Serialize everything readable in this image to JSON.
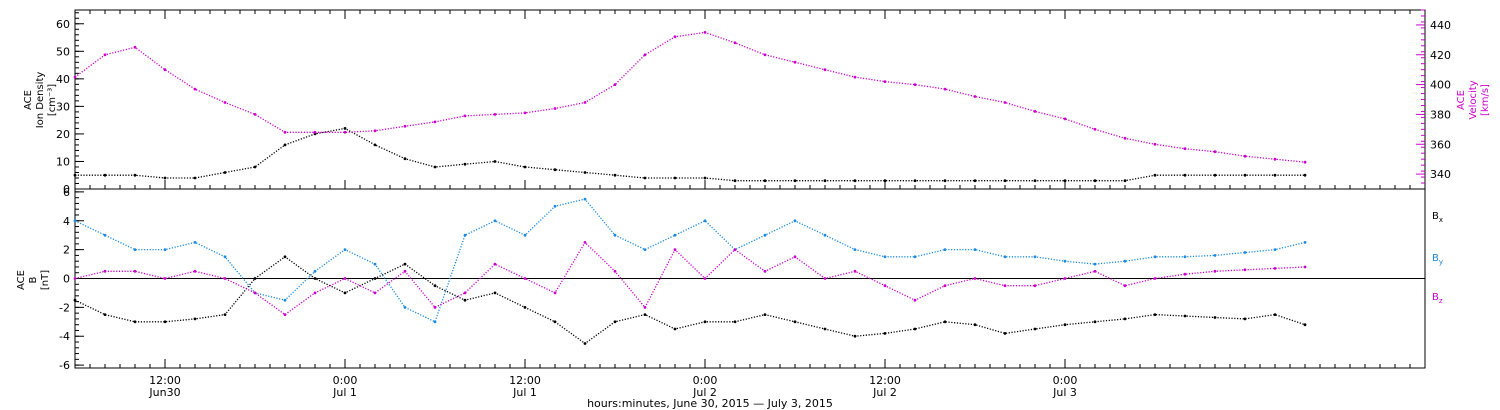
{
  "chart_data": [
    {
      "type": "scatter",
      "panel": "density-velocity",
      "ylabel_left": [
        "ACE",
        "Ion Density",
        "[cm⁻³]"
      ],
      "ylabel_right": [
        "ACE",
        "Velocity",
        "[km/s]"
      ],
      "ylim_left": [
        0,
        65
      ],
      "ylim_right": [
        330,
        450
      ],
      "yticks_left": [
        0,
        10,
        20,
        30,
        40,
        50,
        60
      ],
      "yticks_right": [
        340,
        360,
        380,
        400,
        420,
        440
      ],
      "series": [
        {
          "axis": "left",
          "color": "#000000",
          "x": [
            0,
            2,
            4,
            6,
            8,
            10,
            12,
            14,
            16,
            18,
            20,
            22,
            24,
            26,
            28,
            30,
            32,
            34,
            36,
            38,
            40,
            42,
            44,
            46,
            48,
            50,
            52,
            54,
            56,
            58,
            60,
            62,
            64,
            66,
            68,
            70,
            72,
            74,
            76,
            78,
            80,
            82
          ],
          "values": [
            5,
            5,
            5,
            4,
            4,
            6,
            8,
            16,
            20,
            22,
            16,
            11,
            8,
            9,
            10,
            8,
            7,
            6,
            5,
            4,
            4,
            4,
            3,
            3,
            3,
            3,
            3,
            3,
            3,
            3,
            3,
            3,
            3,
            3,
            3,
            3,
            5,
            5,
            5,
            5,
            5,
            5
          ]
        },
        {
          "axis": "right",
          "color": "#cc00cc",
          "x": [
            0,
            2,
            4,
            6,
            8,
            10,
            12,
            14,
            16,
            18,
            20,
            22,
            24,
            26,
            28,
            30,
            32,
            34,
            36,
            38,
            40,
            42,
            44,
            46,
            48,
            50,
            52,
            54,
            56,
            58,
            60,
            62,
            64,
            66,
            68,
            70,
            72,
            74,
            76,
            78,
            80,
            82
          ],
          "values": [
            405,
            420,
            425,
            410,
            397,
            388,
            380,
            368,
            368,
            368,
            369,
            372,
            375,
            379,
            380,
            381,
            384,
            388,
            400,
            420,
            432,
            435,
            428,
            420,
            415,
            410,
            405,
            402,
            400,
            397,
            392,
            388,
            382,
            377,
            370,
            364,
            360,
            357,
            355,
            352,
            350,
            348
          ]
        }
      ]
    },
    {
      "type": "scatter",
      "panel": "magnetic-field",
      "ylabel": [
        "ACE",
        "B",
        "[nT]"
      ],
      "ylim": [
        -6.2,
        6.2
      ],
      "yticks": [
        -6,
        -4,
        -2,
        0,
        2,
        4,
        6
      ],
      "series": [
        {
          "name": "Bx",
          "color": "#000000",
          "x": [
            0,
            2,
            4,
            6,
            8,
            10,
            12,
            14,
            16,
            18,
            20,
            22,
            24,
            26,
            28,
            30,
            32,
            34,
            36,
            38,
            40,
            42,
            44,
            46,
            48,
            50,
            52,
            54,
            56,
            58,
            60,
            62,
            64,
            66,
            68,
            70,
            72,
            74,
            76,
            78,
            80,
            82
          ],
          "values": [
            -1.5,
            -2.5,
            -3,
            -3,
            -2.8,
            -2.5,
            0,
            1.5,
            0,
            -1,
            0,
            1,
            -0.5,
            -1.5,
            -1,
            -2,
            -3,
            -4.5,
            -3,
            -2.5,
            -3.5,
            -3,
            -3,
            -2.5,
            -3,
            -3.5,
            -4,
            -3.8,
            -3.5,
            -3,
            -3.2,
            -3.8,
            -3.5,
            -3.2,
            -3,
            -2.8,
            -2.5,
            -2.6,
            -2.7,
            -2.8,
            -2.5,
            -3.2
          ]
        },
        {
          "name": "By",
          "color": "#1a8ae0",
          "x": [
            0,
            2,
            4,
            6,
            8,
            10,
            12,
            14,
            16,
            18,
            20,
            22,
            24,
            26,
            28,
            30,
            32,
            34,
            36,
            38,
            40,
            42,
            44,
            46,
            48,
            50,
            52,
            54,
            56,
            58,
            60,
            62,
            64,
            66,
            68,
            70,
            72,
            74,
            76,
            78,
            80,
            82
          ],
          "values": [
            4,
            3,
            2,
            2,
            2.5,
            1.5,
            -1,
            -1.5,
            0.5,
            2,
            1,
            -2,
            -3,
            3,
            4,
            3,
            5,
            5.5,
            3,
            2,
            3,
            4,
            2,
            3,
            4,
            3,
            2,
            1.5,
            1.5,
            2,
            2,
            1.5,
            1.5,
            1.2,
            1,
            1.2,
            1.5,
            1.5,
            1.6,
            1.8,
            2,
            2.5
          ]
        },
        {
          "name": "Bz",
          "color": "#cc00cc",
          "x": [
            0,
            2,
            4,
            6,
            8,
            10,
            12,
            14,
            16,
            18,
            20,
            22,
            24,
            26,
            28,
            30,
            32,
            34,
            36,
            38,
            40,
            42,
            44,
            46,
            48,
            50,
            52,
            54,
            56,
            58,
            60,
            62,
            64,
            66,
            68,
            70,
            72,
            74,
            76,
            78,
            80,
            82
          ],
          "values": [
            0,
            0.5,
            0.5,
            0,
            0.5,
            0,
            -1,
            -2.5,
            -1,
            0,
            -1,
            0.5,
            -2,
            -1,
            1,
            0,
            -1,
            2.5,
            0.5,
            -2,
            2,
            0,
            2,
            0.5,
            1.5,
            0,
            0.5,
            -0.5,
            -1.5,
            -0.5,
            0,
            -0.5,
            -0.5,
            0,
            0.5,
            -0.5,
            0,
            0.3,
            0.5,
            0.6,
            0.7,
            0.8
          ]
        }
      ]
    }
  ],
  "xaxis": {
    "range_hours": [
      0,
      90
    ],
    "ticks": [
      {
        "h": 6,
        "time": "12:00",
        "date": "Jun30"
      },
      {
        "h": 18,
        "time": "0:00",
        "date": "Jul 1"
      },
      {
        "h": 30,
        "time": "12:00",
        "date": "Jul 1"
      },
      {
        "h": 42,
        "time": "0:00",
        "date": "Jul 2"
      },
      {
        "h": 54,
        "time": "12:00",
        "date": "Jul 2"
      },
      {
        "h": 66,
        "time": "0:00",
        "date": "Jul 3"
      }
    ],
    "title": "hours:minutes, June 30, 2015 — July  3, 2015"
  },
  "legend": [
    {
      "base": "B",
      "sub": "x",
      "color": "#000000"
    },
    {
      "base": "B",
      "sub": "y",
      "color": "#1a8ae0"
    },
    {
      "base": "B",
      "sub": "z",
      "color": "#cc00cc"
    }
  ]
}
